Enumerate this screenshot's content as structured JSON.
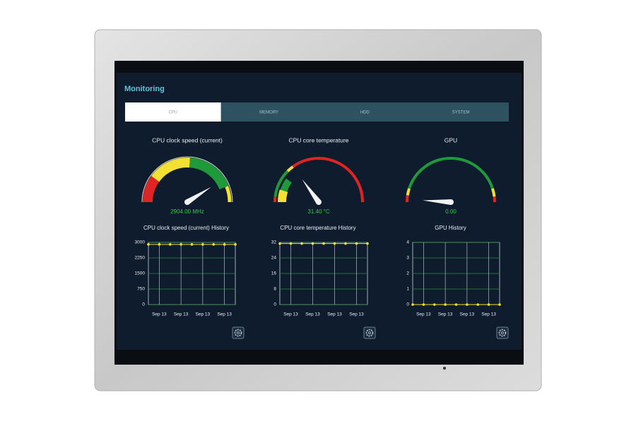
{
  "header": {
    "title": "Monitoring"
  },
  "tabs": [
    "CPU",
    "MEMORY",
    "HDD",
    "SYSTEM"
  ],
  "gauges": [
    {
      "title": "CPU clock speed (current)",
      "readout": "2904.00 MHz"
    },
    {
      "title": "CPU core temperature",
      "readout": "31.40 °C"
    },
    {
      "title": "GPU",
      "readout": "0.00"
    }
  ],
  "charts": [
    {
      "title": "CPU clock speed (current) History",
      "x_labels": [
        "Sep 13",
        "Sep 13",
        "Sep 13",
        "Sep 13"
      ],
      "ylim": [
        0,
        3000
      ],
      "yticks": [
        0,
        750,
        1500,
        2250,
        3000
      ],
      "values": [
        2904,
        2904,
        2904,
        2904,
        2904,
        2904,
        2904,
        2904,
        2904
      ]
    },
    {
      "title": "CPU core temperature History",
      "x_labels": [
        "Sep 13",
        "Sep 13",
        "Sep 13",
        "Sep 13"
      ],
      "ylim": [
        0,
        32
      ],
      "yticks": [
        0,
        8,
        16,
        24,
        32
      ],
      "values": [
        31.4,
        31.4,
        31.4,
        31.4,
        31.4,
        31.4,
        31.4,
        31.4,
        31.4
      ]
    },
    {
      "title": "GPU History",
      "x_labels": [
        "Sep 13",
        "Sep 13",
        "Sep 13",
        "Sep 13"
      ],
      "ylim": [
        0,
        4
      ],
      "yticks": [
        0,
        1,
        2,
        3,
        4
      ],
      "values": [
        0,
        0,
        0,
        0,
        0,
        0,
        0,
        0,
        0
      ]
    }
  ]
}
